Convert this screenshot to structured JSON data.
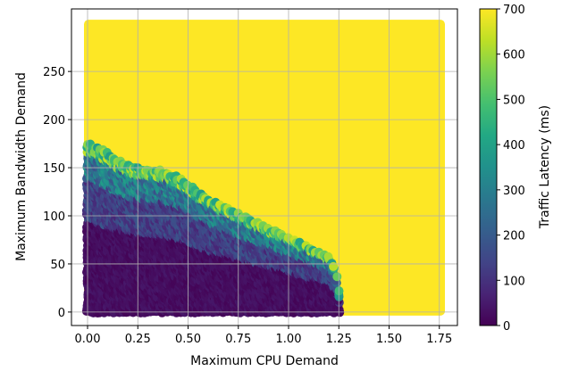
{
  "chart_data": {
    "type": "scatter",
    "xlabel": "Maximum CPU Demand",
    "ylabel": "Maximum Bandwidth Demand",
    "xlim": [
      -0.08,
      1.84
    ],
    "ylim": [
      -14,
      315
    ],
    "xticks": [
      0.0,
      0.25,
      0.5,
      0.75,
      1.0,
      1.25,
      1.5,
      1.75
    ],
    "xtick_labels": [
      "0.00",
      "0.25",
      "0.50",
      "0.75",
      "1.00",
      "1.25",
      "1.50",
      "1.75"
    ],
    "yticks": [
      0,
      50,
      100,
      150,
      200,
      250
    ],
    "ytick_labels": [
      "0",
      "50",
      "100",
      "150",
      "200",
      "250"
    ],
    "grid": true,
    "colorbar": {
      "label": "Traffic Latency (ms)",
      "min": 0,
      "max": 700,
      "ticks": [
        0,
        100,
        200,
        300,
        400,
        500,
        600,
        700
      ],
      "tick_labels": [
        "0",
        "100",
        "200",
        "300",
        "400",
        "500",
        "600",
        "700"
      ],
      "colormap": "viridis"
    },
    "sample_range": {
      "cpu": [
        0.0,
        1.76
      ],
      "bandwidth": [
        0,
        300
      ]
    },
    "saturation_value": 700,
    "boundary": [
      {
        "cpu": 0.0,
        "bandwidth": 172
      },
      {
        "cpu": 0.05,
        "bandwidth": 168
      },
      {
        "cpu": 0.1,
        "bandwidth": 162
      },
      {
        "cpu": 0.15,
        "bandwidth": 155
      },
      {
        "cpu": 0.2,
        "bandwidth": 150
      },
      {
        "cpu": 0.25,
        "bandwidth": 147
      },
      {
        "cpu": 0.3,
        "bandwidth": 146
      },
      {
        "cpu": 0.35,
        "bandwidth": 145
      },
      {
        "cpu": 0.4,
        "bandwidth": 142
      },
      {
        "cpu": 0.45,
        "bandwidth": 138
      },
      {
        "cpu": 0.5,
        "bandwidth": 130
      },
      {
        "cpu": 0.55,
        "bandwidth": 122
      },
      {
        "cpu": 0.6,
        "bandwidth": 115
      },
      {
        "cpu": 0.65,
        "bandwidth": 110
      },
      {
        "cpu": 0.7,
        "bandwidth": 105
      },
      {
        "cpu": 0.75,
        "bandwidth": 100
      },
      {
        "cpu": 0.8,
        "bandwidth": 95
      },
      {
        "cpu": 0.85,
        "bandwidth": 90
      },
      {
        "cpu": 0.9,
        "bandwidth": 85
      },
      {
        "cpu": 0.95,
        "bandwidth": 80
      },
      {
        "cpu": 1.0,
        "bandwidth": 75
      },
      {
        "cpu": 1.05,
        "bandwidth": 70
      },
      {
        "cpu": 1.1,
        "bandwidth": 65
      },
      {
        "cpu": 1.15,
        "bandwidth": 60
      },
      {
        "cpu": 1.2,
        "bandwidth": 55
      },
      {
        "cpu": 1.23,
        "bandwidth": 45
      },
      {
        "cpu": 1.25,
        "bandwidth": 20
      },
      {
        "cpu": 1.26,
        "bandwidth": 0
      }
    ]
  }
}
